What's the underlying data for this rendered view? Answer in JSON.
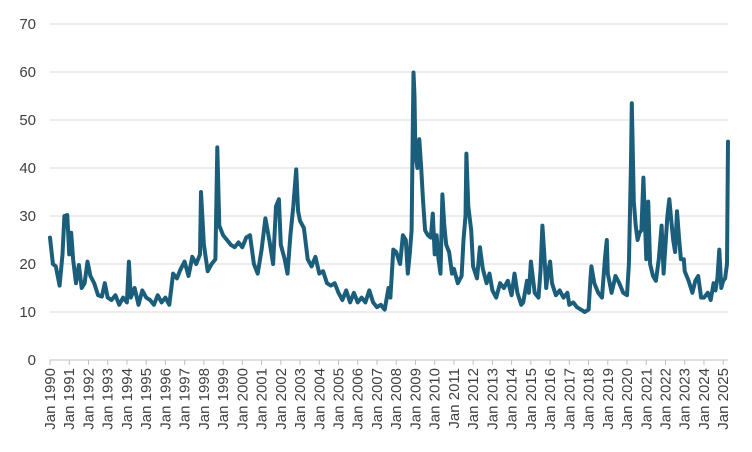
{
  "chart_data": {
    "type": "line",
    "title": "",
    "xlabel": "",
    "ylabel": "",
    "ylim": [
      0,
      70
    ],
    "yticks": [
      0,
      10,
      20,
      30,
      40,
      50,
      60,
      70
    ],
    "xlim": [
      1990.0,
      2025.25
    ],
    "grid": "horizontal",
    "legend": "none",
    "x_tick_labels": [
      "Jan 1990",
      "Jan 1991",
      "Jan 1992",
      "Jan 1993",
      "Jan 1994",
      "Jan 1995",
      "Jan 1996",
      "Jan 1997",
      "Jan 1998",
      "Jan 1999",
      "Jan 2000",
      "Jan 2001",
      "Jan 2002",
      "Jan 2003",
      "Jan 2004",
      "Jan 2005",
      "Jan 2006",
      "Jan 2007",
      "Jan 2008",
      "Jan 2009",
      "Jan 2010",
      "Jan 2011",
      "Jan 2012",
      "Jan 2013",
      "Jan 2014",
      "Jan 2015",
      "Jan 2016",
      "Jan 2017",
      "Jan 2018",
      "Jan 2019",
      "Jan 2020",
      "Jan 2021",
      "Jan 2022",
      "Jan 2023",
      "Jan 2024",
      "Jan 2025"
    ],
    "series": [
      {
        "color": "#1b5e7b",
        "points": [
          [
            1990.0,
            25.5
          ],
          [
            1990.15,
            20
          ],
          [
            1990.3,
            19.5
          ],
          [
            1990.5,
            15.5
          ],
          [
            1990.65,
            22
          ],
          [
            1990.75,
            30
          ],
          [
            1990.9,
            30.2
          ],
          [
            1991.0,
            22
          ],
          [
            1991.1,
            26.5
          ],
          [
            1991.2,
            21
          ],
          [
            1991.35,
            16
          ],
          [
            1991.5,
            19.8
          ],
          [
            1991.65,
            15
          ],
          [
            1991.8,
            16
          ],
          [
            1991.95,
            20.5
          ],
          [
            1992.1,
            17.5
          ],
          [
            1992.3,
            16
          ],
          [
            1992.5,
            13.5
          ],
          [
            1992.7,
            13.2
          ],
          [
            1992.85,
            16
          ],
          [
            1993.0,
            13
          ],
          [
            1993.2,
            12.5
          ],
          [
            1993.4,
            13.5
          ],
          [
            1993.6,
            11.5
          ],
          [
            1993.8,
            13
          ],
          [
            1994.0,
            12
          ],
          [
            1994.1,
            20.5
          ],
          [
            1994.2,
            13
          ],
          [
            1994.4,
            15
          ],
          [
            1994.6,
            11.5
          ],
          [
            1994.8,
            14.5
          ],
          [
            1995.0,
            13
          ],
          [
            1995.2,
            12.5
          ],
          [
            1995.4,
            11.5
          ],
          [
            1995.6,
            13.5
          ],
          [
            1995.8,
            12
          ],
          [
            1996.0,
            13
          ],
          [
            1996.2,
            11.5
          ],
          [
            1996.4,
            18
          ],
          [
            1996.6,
            17
          ],
          [
            1996.8,
            19
          ],
          [
            1997.0,
            20.5
          ],
          [
            1997.2,
            17.5
          ],
          [
            1997.4,
            21.5
          ],
          [
            1997.6,
            20
          ],
          [
            1997.8,
            22
          ],
          [
            1997.85,
            35
          ],
          [
            1998.0,
            24
          ],
          [
            1998.2,
            18.5
          ],
          [
            1998.4,
            20
          ],
          [
            1998.6,
            21
          ],
          [
            1998.7,
            44.3
          ],
          [
            1998.8,
            28
          ],
          [
            1999.0,
            26
          ],
          [
            1999.2,
            25
          ],
          [
            1999.4,
            24
          ],
          [
            1999.6,
            23.5
          ],
          [
            1999.8,
            24.5
          ],
          [
            2000.0,
            23.5
          ],
          [
            2000.2,
            25.5
          ],
          [
            2000.4,
            26
          ],
          [
            2000.6,
            20
          ],
          [
            2000.8,
            18
          ],
          [
            2001.0,
            23
          ],
          [
            2001.2,
            29.5
          ],
          [
            2001.4,
            25
          ],
          [
            2001.6,
            20
          ],
          [
            2001.75,
            32
          ],
          [
            2001.9,
            33.5
          ],
          [
            2002.0,
            24
          ],
          [
            2002.2,
            21
          ],
          [
            2002.35,
            18
          ],
          [
            2002.5,
            26
          ],
          [
            2002.65,
            32
          ],
          [
            2002.8,
            39.7
          ],
          [
            2002.9,
            31
          ],
          [
            2003.0,
            29
          ],
          [
            2003.2,
            27.5
          ],
          [
            2003.4,
            21
          ],
          [
            2003.6,
            19.5
          ],
          [
            2003.8,
            21.5
          ],
          [
            2004.0,
            18
          ],
          [
            2004.2,
            18.5
          ],
          [
            2004.4,
            16
          ],
          [
            2004.6,
            15.5
          ],
          [
            2004.8,
            16
          ],
          [
            2005.0,
            14
          ],
          [
            2005.2,
            12.5
          ],
          [
            2005.4,
            14.5
          ],
          [
            2005.6,
            12
          ],
          [
            2005.8,
            14
          ],
          [
            2006.0,
            12
          ],
          [
            2006.2,
            13
          ],
          [
            2006.4,
            12
          ],
          [
            2006.6,
            14.5
          ],
          [
            2006.8,
            12
          ],
          [
            2007.0,
            11
          ],
          [
            2007.2,
            11.5
          ],
          [
            2007.4,
            10.5
          ],
          [
            2007.6,
            15
          ],
          [
            2007.7,
            13
          ],
          [
            2007.85,
            23
          ],
          [
            2008.0,
            22.5
          ],
          [
            2008.2,
            20
          ],
          [
            2008.35,
            26
          ],
          [
            2008.5,
            25
          ],
          [
            2008.6,
            18
          ],
          [
            2008.7,
            22
          ],
          [
            2008.8,
            27
          ],
          [
            2008.85,
            45
          ],
          [
            2008.9,
            59.9
          ],
          [
            2008.95,
            55
          ],
          [
            2009.0,
            43
          ],
          [
            2009.1,
            40
          ],
          [
            2009.2,
            46
          ],
          [
            2009.3,
            40
          ],
          [
            2009.4,
            33
          ],
          [
            2009.5,
            27
          ],
          [
            2009.65,
            26
          ],
          [
            2009.8,
            25.5
          ],
          [
            2009.9,
            30.5
          ],
          [
            2010.0,
            22
          ],
          [
            2010.1,
            26
          ],
          [
            2010.2,
            21
          ],
          [
            2010.3,
            18
          ],
          [
            2010.4,
            34.5
          ],
          [
            2010.5,
            28
          ],
          [
            2010.6,
            24
          ],
          [
            2010.75,
            22.5
          ],
          [
            2010.9,
            18
          ],
          [
            2011.0,
            19
          ],
          [
            2011.2,
            16
          ],
          [
            2011.4,
            17.5
          ],
          [
            2011.5,
            25
          ],
          [
            2011.6,
            30
          ],
          [
            2011.65,
            43
          ],
          [
            2011.75,
            32
          ],
          [
            2011.9,
            27
          ],
          [
            2012.0,
            19.5
          ],
          [
            2012.2,
            17
          ],
          [
            2012.35,
            23.5
          ],
          [
            2012.5,
            19
          ],
          [
            2012.7,
            16
          ],
          [
            2012.85,
            18
          ],
          [
            2013.0,
            14.5
          ],
          [
            2013.2,
            13
          ],
          [
            2013.4,
            16
          ],
          [
            2013.6,
            15
          ],
          [
            2013.8,
            16.5
          ],
          [
            2014.0,
            13.5
          ],
          [
            2014.15,
            18
          ],
          [
            2014.3,
            14
          ],
          [
            2014.5,
            11.5
          ],
          [
            2014.6,
            12
          ],
          [
            2014.8,
            16.5
          ],
          [
            2014.9,
            14
          ],
          [
            2015.0,
            20.5
          ],
          [
            2015.2,
            14
          ],
          [
            2015.4,
            13
          ],
          [
            2015.5,
            18.5
          ],
          [
            2015.6,
            28
          ],
          [
            2015.7,
            22
          ],
          [
            2015.8,
            15
          ],
          [
            2015.9,
            18.5
          ],
          [
            2016.0,
            20.5
          ],
          [
            2016.1,
            16
          ],
          [
            2016.3,
            13.5
          ],
          [
            2016.5,
            14.5
          ],
          [
            2016.7,
            13
          ],
          [
            2016.9,
            14
          ],
          [
            2017.0,
            11.5
          ],
          [
            2017.2,
            12
          ],
          [
            2017.4,
            11
          ],
          [
            2017.6,
            10.5
          ],
          [
            2017.8,
            10
          ],
          [
            2018.0,
            10.5
          ],
          [
            2018.1,
            17
          ],
          [
            2018.15,
            19.5
          ],
          [
            2018.3,
            16
          ],
          [
            2018.5,
            14
          ],
          [
            2018.7,
            13
          ],
          [
            2018.85,
            21
          ],
          [
            2018.95,
            25
          ],
          [
            2019.0,
            18
          ],
          [
            2019.2,
            14
          ],
          [
            2019.4,
            17.5
          ],
          [
            2019.6,
            16
          ],
          [
            2019.8,
            14
          ],
          [
            2020.0,
            13.5
          ],
          [
            2020.1,
            20
          ],
          [
            2020.2,
            40
          ],
          [
            2020.25,
            53.5
          ],
          [
            2020.35,
            33
          ],
          [
            2020.45,
            28
          ],
          [
            2020.55,
            25
          ],
          [
            2020.65,
            26.5
          ],
          [
            2020.75,
            27
          ],
          [
            2020.85,
            38
          ],
          [
            2020.95,
            27
          ],
          [
            2021.0,
            21
          ],
          [
            2021.1,
            33
          ],
          [
            2021.2,
            20
          ],
          [
            2021.35,
            17.5
          ],
          [
            2021.5,
            16.5
          ],
          [
            2021.65,
            21
          ],
          [
            2021.8,
            28
          ],
          [
            2021.9,
            18
          ],
          [
            2022.0,
            24
          ],
          [
            2022.1,
            30
          ],
          [
            2022.2,
            33.5
          ],
          [
            2022.3,
            29
          ],
          [
            2022.4,
            25
          ],
          [
            2022.5,
            22.5
          ],
          [
            2022.6,
            31
          ],
          [
            2022.7,
            25.5
          ],
          [
            2022.8,
            21
          ],
          [
            2022.95,
            21
          ],
          [
            2023.0,
            18.5
          ],
          [
            2023.2,
            16.5
          ],
          [
            2023.4,
            14
          ],
          [
            2023.55,
            16.5
          ],
          [
            2023.7,
            17.5
          ],
          [
            2023.85,
            13
          ],
          [
            2024.0,
            13
          ],
          [
            2024.2,
            14
          ],
          [
            2024.35,
            12.5
          ],
          [
            2024.5,
            16
          ],
          [
            2024.6,
            14.5
          ],
          [
            2024.7,
            17
          ],
          [
            2024.8,
            23
          ],
          [
            2024.9,
            15
          ],
          [
            2025.0,
            16.5
          ],
          [
            2025.1,
            17
          ],
          [
            2025.2,
            20
          ],
          [
            2025.25,
            45.5
          ]
        ]
      }
    ]
  }
}
